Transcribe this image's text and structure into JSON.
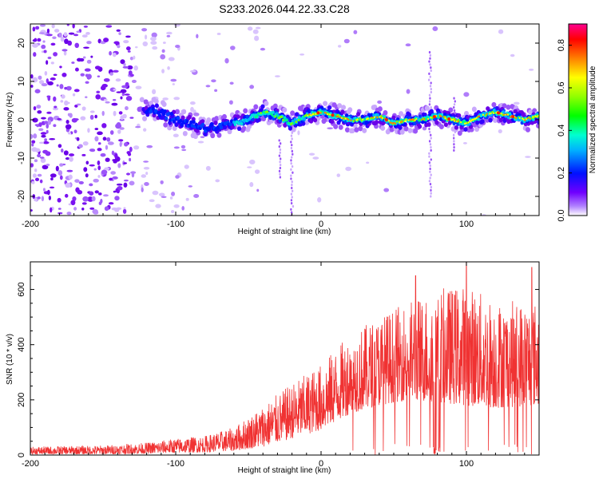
{
  "title": "S233.2026.044.22.33.C28",
  "chart_data": [
    {
      "type": "heatmap",
      "name": "spectrogram",
      "xlabel": "Height of straight line (km)",
      "ylabel": "Frequency (Hz)",
      "xlim": [
        -200,
        150
      ],
      "ylim": [
        -25,
        25
      ],
      "xticks": [
        -200,
        -100,
        0,
        100
      ],
      "xtick_labels": [
        "-200",
        "-100",
        "0",
        "100"
      ],
      "yticks": [
        -20,
        -10,
        0,
        10,
        20
      ],
      "ytick_labels": [
        "-20",
        "-10",
        "0",
        "10",
        "20"
      ],
      "ridge": {
        "description": "dominant frequency band",
        "x": [
          -125,
          -110,
          -100,
          -90,
          -80,
          -70,
          -60,
          -50,
          -40,
          -30,
          -20,
          -10,
          0,
          10,
          20,
          30,
          40,
          50,
          60,
          70,
          80,
          90,
          100,
          110,
          120,
          130,
          140,
          150
        ],
        "y": [
          3,
          2,
          0,
          -1,
          -2,
          -2,
          -1,
          0,
          2,
          1,
          -1,
          1,
          2,
          1,
          0,
          0,
          1,
          -1,
          0,
          0,
          1,
          0,
          -1,
          1,
          2,
          1,
          0,
          1
        ]
      },
      "colorbar": {
        "label": "Normalized spectral amplitude",
        "min": 0.0,
        "max": 0.9,
        "ticks": [
          0.0,
          0.2,
          0.4,
          0.6,
          0.8
        ],
        "tick_labels": [
          "0.0",
          "0.2",
          "0.4",
          "0.6",
          "0.8"
        ]
      }
    },
    {
      "type": "line",
      "name": "snr",
      "xlabel": "Height of straight line (km)",
      "ylabel": "SNR (10 * v/v)",
      "xlim": [
        -200,
        150
      ],
      "ylim": [
        0,
        700
      ],
      "xticks": [
        -200,
        -100,
        0,
        100
      ],
      "xtick_labels": [
        "-200",
        "-100",
        "0",
        "100"
      ],
      "yticks": [
        0,
        200,
        400,
        600
      ],
      "ytick_labels": [
        "0",
        "200",
        "400",
        "600"
      ],
      "color": "#f03232",
      "envelope": {
        "x": [
          -200,
          -150,
          -120,
          -100,
          -80,
          -60,
          -40,
          -20,
          0,
          20,
          40,
          60,
          80,
          100,
          120,
          150
        ],
        "low": [
          3,
          3,
          5,
          8,
          10,
          15,
          30,
          60,
          90,
          150,
          180,
          200,
          190,
          180,
          170,
          180
        ],
        "high": [
          30,
          35,
          45,
          60,
          70,
          100,
          180,
          260,
          330,
          440,
          500,
          560,
          600,
          620,
          560,
          560
        ]
      },
      "spikes": [
        {
          "x": 65,
          "y": 650
        },
        {
          "x": 100,
          "y": 700
        },
        {
          "x": 145,
          "y": 680
        }
      ]
    }
  ]
}
